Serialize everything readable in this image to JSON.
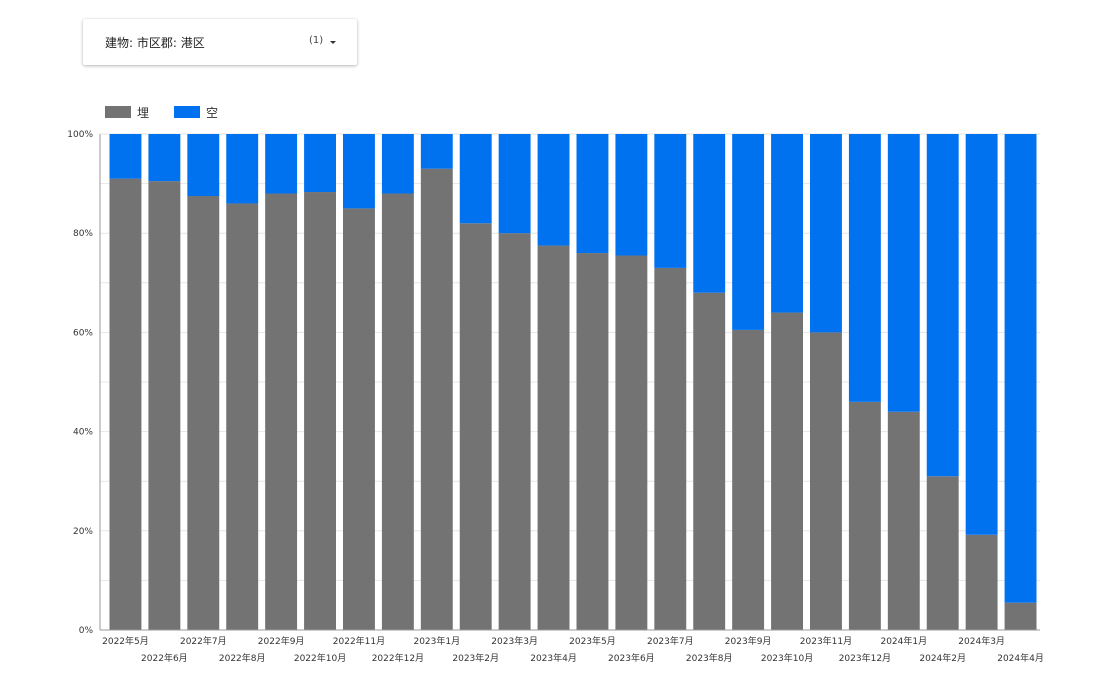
{
  "filter": {
    "label": "建物: 市区郡: 港区",
    "count": "(1)",
    "caret_icon": "caret-down-icon"
  },
  "colors": {
    "filled": "#737373",
    "vacant": "#0072F0",
    "grid": "#e6e6e6",
    "axis": "#999999",
    "text": "#333333"
  },
  "chart_data": {
    "type": "bar",
    "stacked": "percent",
    "legend_position": "top-left",
    "grid": true,
    "ylim": [
      0,
      100
    ],
    "yticks": [
      "0%",
      "20%",
      "40%",
      "60%",
      "80%",
      "100%"
    ],
    "categories": [
      "2022年5月",
      "2022年6月",
      "2022年7月",
      "2022年8月",
      "2022年9月",
      "2022年10月",
      "2022年11月",
      "2022年12月",
      "2023年1月",
      "2023年2月",
      "2023年3月",
      "2023年4月",
      "2023年5月",
      "2023年6月",
      "2023年7月",
      "2023年8月",
      "2023年9月",
      "2023年10月",
      "2023年11月",
      "2023年12月",
      "2024年1月",
      "2024年2月",
      "2024年3月",
      "2024年4月"
    ],
    "series": [
      {
        "name": "埋",
        "values": [
          91,
          90.5,
          87.5,
          86,
          88,
          88.3,
          85,
          88,
          93,
          82,
          80,
          77.5,
          76,
          75.5,
          73,
          68,
          60.5,
          64,
          60,
          46,
          44,
          31,
          19.2,
          5.5
        ]
      },
      {
        "name": "空",
        "values": [
          9,
          9.5,
          12.5,
          14,
          12,
          11.7,
          15,
          12,
          7,
          18,
          20,
          22.5,
          24,
          24.5,
          27,
          32,
          39.5,
          36,
          40,
          54,
          56,
          69,
          80.8,
          94.5
        ]
      }
    ]
  }
}
